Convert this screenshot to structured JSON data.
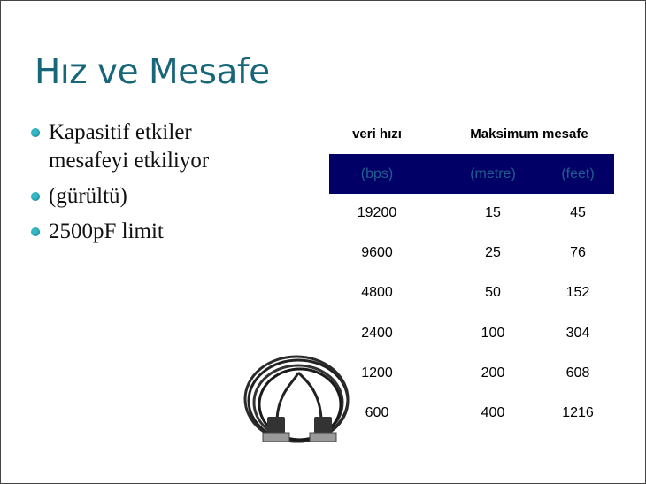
{
  "title": "Hız ve Mesafe",
  "bullets": [
    "Kapasitif etkiler mesafeyi etkiliyor",
    "(gürültü)",
    "2500pF limit"
  ],
  "table": {
    "headers": [
      "veri hızı",
      "Maksimum mesafe"
    ],
    "units": [
      "(bps)",
      "(metre)",
      "(feet)"
    ],
    "rows": [
      [
        "19200",
        "15",
        "45"
      ],
      [
        "9600",
        "25",
        "76"
      ],
      [
        "4800",
        "50",
        "152"
      ],
      [
        "2400",
        "100",
        "304"
      ],
      [
        "1200",
        "200",
        "608"
      ],
      [
        "600",
        "400",
        "1216"
      ]
    ]
  },
  "colors": {
    "title": "#17667a",
    "bullet": "#34b8c4",
    "unit_band": "#000066"
  },
  "image": "serial-cable"
}
